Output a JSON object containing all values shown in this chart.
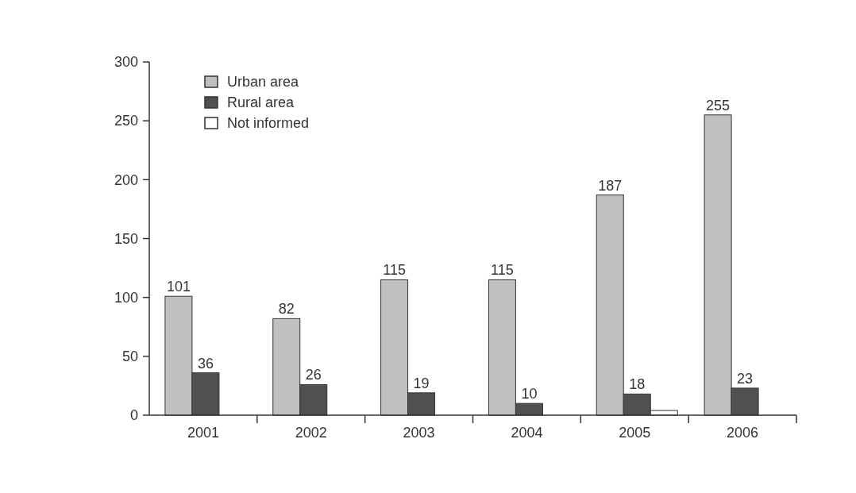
{
  "chart_data": {
    "type": "bar",
    "categories": [
      "2001",
      "2002",
      "2003",
      "2004",
      "2005",
      "2006"
    ],
    "series": [
      {
        "name": "Urban area",
        "color": "#c0c0c0",
        "values": [
          101,
          82,
          115,
          115,
          187,
          255
        ],
        "value_labels": [
          "101",
          "82",
          "115",
          "115",
          "187",
          "255"
        ]
      },
      {
        "name": "Rural area",
        "color": "#505050",
        "values": [
          36,
          26,
          19,
          10,
          18,
          23
        ],
        "value_labels": [
          "36",
          "26",
          "19",
          "10",
          "18",
          "23"
        ]
      },
      {
        "name": "Not informed",
        "color": "#ffffff",
        "values": [
          null,
          null,
          null,
          null,
          4,
          null
        ]
      }
    ],
    "ylim": [
      0,
      300
    ],
    "yticks": [
      0,
      50,
      100,
      150,
      200,
      250,
      300
    ],
    "legend": "top left",
    "grid": false
  }
}
